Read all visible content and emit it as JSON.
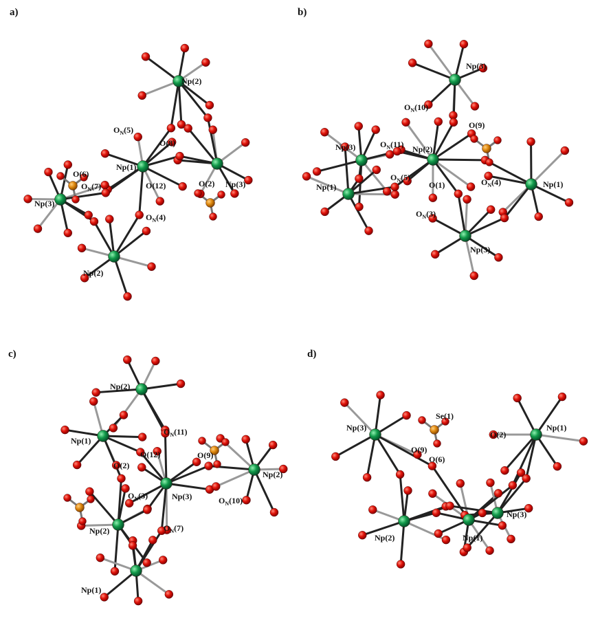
{
  "panels": [
    {
      "label": "a)",
      "atom_labels": [
        "Np(2)",
        [
          "O",
          "N",
          "(5)"
        ],
        "O(8)",
        "Np(1)",
        "O(6)",
        [
          "O",
          "N",
          "(7)"
        ],
        "O(12)",
        "O(2)",
        "Np(3)",
        "Np(3)",
        [
          "O",
          "N",
          "(4)"
        ],
        "Np(2)"
      ]
    },
    {
      "label": "b)",
      "atom_labels": [
        "Np(3)",
        [
          "O",
          "N",
          "(10)"
        ],
        "O(9)",
        "Np(3)",
        [
          "O",
          "N",
          "(11)"
        ],
        "Np(2)",
        [
          "O",
          "N",
          "(5)"
        ],
        "O(1)",
        [
          "O",
          "N",
          "(4)"
        ],
        "Np(1)",
        "Np(1)",
        [
          "O",
          "N",
          "(3)"
        ],
        "Np(3)"
      ]
    },
    {
      "label": "c)",
      "atom_labels": [
        "Np(2)",
        "Np(1)",
        [
          "O",
          "N",
          "(11)"
        ],
        "O(12)",
        "O(9)",
        "O(2)",
        "Np(2)",
        [
          "O",
          "N",
          "(3)"
        ],
        "Np(3)",
        [
          "O",
          "N",
          "(10)"
        ],
        "Np(2)",
        [
          "O",
          "N",
          "(7)"
        ],
        "Np(1)"
      ]
    },
    {
      "label": "d)",
      "atom_labels": [
        "Np(3)",
        "Se(1)",
        "Np(1)",
        "O(9)",
        "O(2)",
        "O(6)",
        "Np(2)",
        "Np(3)",
        "Np(1)"
      ]
    }
  ]
}
